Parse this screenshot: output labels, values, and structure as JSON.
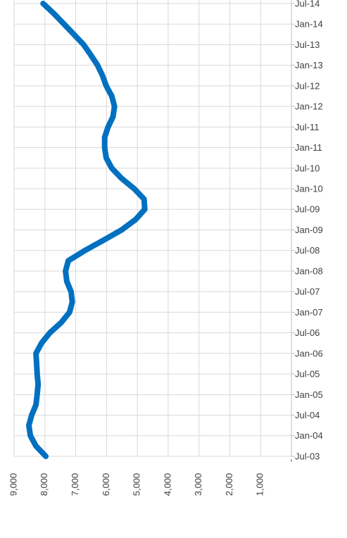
{
  "chart_data": {
    "type": "line",
    "categories": [
      "Jul-03",
      null,
      "Jan-04",
      null,
      "Jul-04",
      null,
      "Jan-05",
      null,
      "Jul-05",
      null,
      "Jan-06",
      null,
      "Jul-06",
      null,
      "Jan-07",
      null,
      "Jul-07",
      null,
      "Jan-08",
      null,
      "Jul-08",
      null,
      "Jan-09",
      null,
      "Jul-09",
      null,
      "Jan-10",
      null,
      "Jul-10",
      null,
      "Jan-11",
      null,
      "Jul-11",
      null,
      "Jan-12",
      null,
      "Jul-12",
      null,
      "Jan-13",
      null,
      "Jul-13",
      null,
      "Jan-14",
      null,
      "Jul-14"
    ],
    "values": [
      7970,
      8290,
      8470,
      8520,
      8430,
      8290,
      8250,
      8220,
      8250,
      8270,
      8290,
      8110,
      7840,
      7470,
      7200,
      7110,
      7150,
      7290,
      7330,
      7240,
      6700,
      6100,
      5510,
      5060,
      4760,
      4780,
      5100,
      5510,
      5830,
      6010,
      6060,
      6060,
      5950,
      5790,
      5740,
      5830,
      6010,
      6130,
      6290,
      6510,
      6740,
      7060,
      7380,
      7700,
      8060
    ],
    "color": "#0070c0",
    "ylim": [
      9000,
      0
    ],
    "yticks": [
      {
        "value": 9000,
        "label": "9,000"
      },
      {
        "value": 8000,
        "label": "8,000"
      },
      {
        "value": 7000,
        "label": "7,000"
      },
      {
        "value": 6000,
        "label": "6,000"
      },
      {
        "value": 5000,
        "label": "5,000"
      },
      {
        "value": 4000,
        "label": "4,000"
      },
      {
        "value": 3000,
        "label": "3,000"
      },
      {
        "value": 2000,
        "label": "2,000"
      },
      {
        "value": 1000,
        "label": "1,000"
      },
      {
        "value": 0,
        "label": "-"
      }
    ],
    "grid": true
  }
}
